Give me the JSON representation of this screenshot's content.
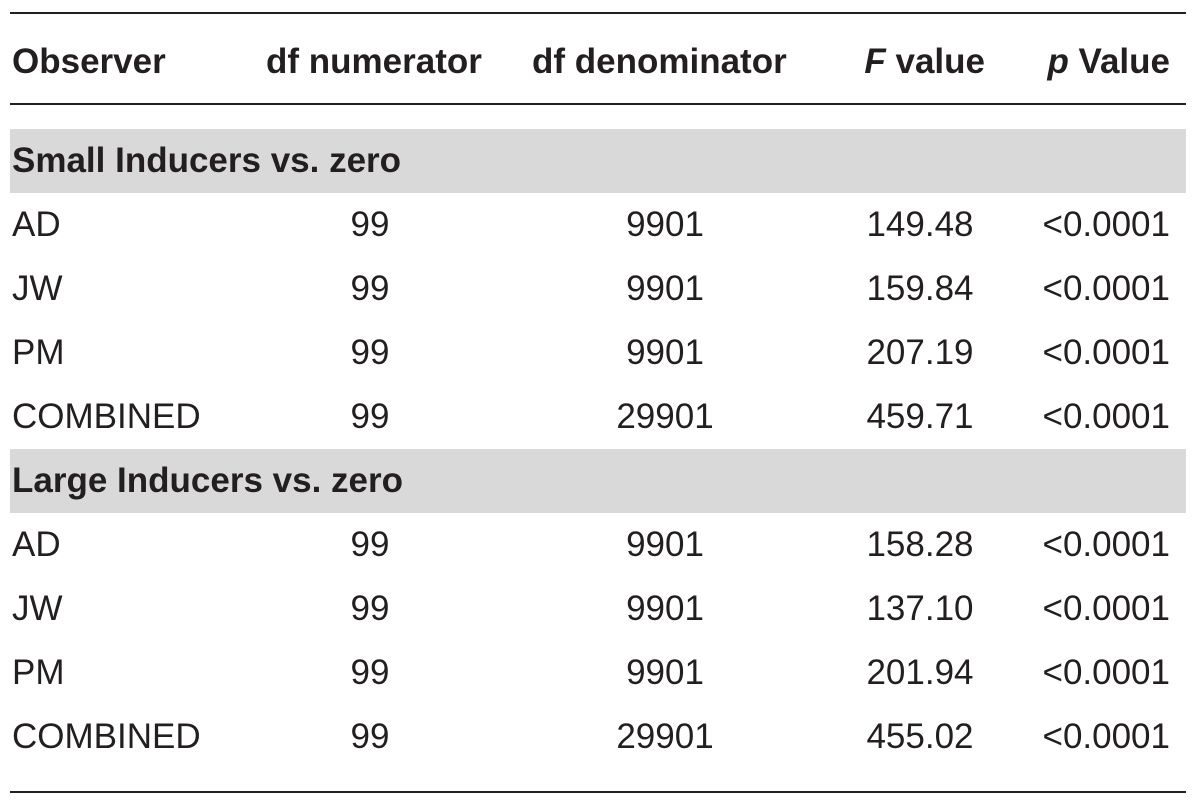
{
  "table": {
    "headers": {
      "observer": "Observer",
      "df_numerator": "df numerator",
      "df_denominator": "df denominator",
      "f_italic": "F",
      "f_rest": " value",
      "p_italic": "p",
      "p_rest": " Value"
    },
    "sections": [
      {
        "title": "Small Inducers vs. zero",
        "rows": [
          {
            "observer": "AD",
            "df_num": "99",
            "df_den": "9901",
            "f": "149.48",
            "p": "<0.0001"
          },
          {
            "observer": "JW",
            "df_num": "99",
            "df_den": "9901",
            "f": "159.84",
            "p": "<0.0001"
          },
          {
            "observer": "PM",
            "df_num": "99",
            "df_den": "9901",
            "f": "207.19",
            "p": "<0.0001"
          },
          {
            "observer": "COMBINED",
            "df_num": "99",
            "df_den": "29901",
            "f": "459.71",
            "p": "<0.0001"
          }
        ]
      },
      {
        "title": "Large Inducers vs. zero",
        "rows": [
          {
            "observer": "AD",
            "df_num": "99",
            "df_den": "9901",
            "f": "158.28",
            "p": "<0.0001"
          },
          {
            "observer": "JW",
            "df_num": "99",
            "df_den": "9901",
            "f": "137.10",
            "p": "<0.0001"
          },
          {
            "observer": "PM",
            "df_num": "99",
            "df_den": "9901",
            "f": "201.94",
            "p": "<0.0001"
          },
          {
            "observer": "COMBINED",
            "df_num": "99",
            "df_den": "29901",
            "f": "455.02",
            "p": "<0.0001"
          }
        ]
      }
    ]
  }
}
